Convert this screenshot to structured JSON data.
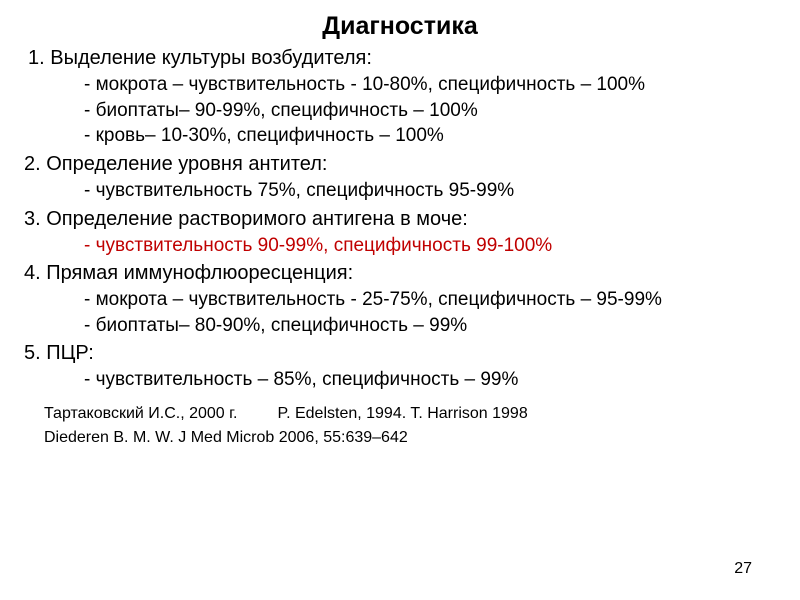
{
  "title": "Диагностика",
  "sections": [
    {
      "number": "1.",
      "heading": "Выделение культуры возбудителя:",
      "indent_class": "section-heading-1",
      "items": [
        {
          "text": "- мокрота – чувствительность - 10-80%, специфичность – 100%",
          "red": false
        },
        {
          "text": "- биоптаты– 90-99%, специфичность – 100%",
          "red": false
        },
        {
          "text": "- кровь– 10-30%, специфичность – 100%",
          "red": false
        }
      ]
    },
    {
      "number": "2.",
      "heading": "Определение уровня антител:",
      "indent_class": "",
      "items": [
        {
          "text": "- чувствительность 75%, специфичность 95-99%",
          "red": false
        }
      ]
    },
    {
      "number": "3.",
      "heading": "Определение растворимого антигена в моче:",
      "indent_class": "",
      "items": [
        {
          "text": "- чувствительность 90-99%, специфичность 99-100%",
          "red": true
        }
      ]
    },
    {
      "number": "4.",
      "heading": "Прямая иммунофлюоресценция:",
      "indent_class": "",
      "items": [
        {
          "text": "- мокрота – чувствительность - 25-75%, специфичность – 95-99%",
          "red": false
        },
        {
          "text": "- биоптаты– 80-90%, специфичность – 99%",
          "red": false
        }
      ]
    },
    {
      "number": "5.",
      "heading": "ПЦР:",
      "indent_class": "",
      "items": [
        {
          "text": "- чувствительность – 85%, специфичность – 99%",
          "red": false
        }
      ]
    }
  ],
  "citations": [
    "Тартаковский И.С., 2000 г.         P. Edelsten, 1994. T. Harrison 1998",
    "Diederen B. M. W. J Med Microb 2006, 55:639–642"
  ],
  "page_number": "27"
}
